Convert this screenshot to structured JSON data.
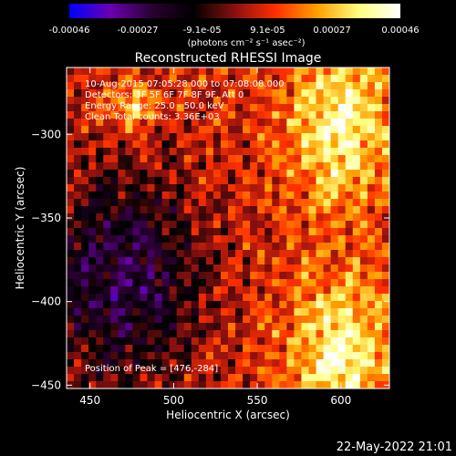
{
  "colorbar": {
    "tick_labels": [
      "-0.00046",
      "-0.00027",
      "-9.1e-05",
      "9.1e-05",
      "0.00027",
      "0.00046"
    ],
    "tick_values": [
      -0.00046,
      -0.00027,
      -9.1e-05,
      9.1e-05,
      0.00027,
      0.00046
    ],
    "range": [
      -0.00046,
      0.00046
    ],
    "units_label": "(photons cm⁻² s⁻¹ asec⁻²)"
  },
  "chart_data": {
    "type": "heatmap",
    "title": "Reconstructed RHESSI Image",
    "xlabel": "Heliocentric X (arcsec)",
    "ylabel": "Heliocentric Y (arcsec)",
    "xlim": [
      436,
      629
    ],
    "ylim": [
      -452,
      -260
    ],
    "x_ticks": [
      450,
      500,
      550,
      600
    ],
    "x_tick_labels": [
      "450",
      "500",
      "550",
      "600"
    ],
    "y_ticks": [
      -450,
      -400,
      -350,
      -300
    ],
    "y_tick_labels": [
      "−450",
      "−400",
      "−350",
      "−300"
    ],
    "annotations": [
      "10-Aug-2015 07:05:28.000 to 07:08:08.000",
      "Detectors: 3F 5F 6F 7F 8F 9F, Att 0",
      "Energy Range: 25.0 - 50.0 keV",
      "Clean      Total counts: 3.36E+03"
    ],
    "peak_label": "Position of Peak = [476,-284]",
    "peak": [
      476,
      -284
    ],
    "colormap": [
      "#0000ff",
      "#6a00b0",
      "#2a0030",
      "#000000",
      "#8a1010",
      "#ff3000",
      "#ffa000",
      "#ffff80",
      "#ffffff"
    ]
  },
  "footer": {
    "date": "22-May-2022 21:01"
  }
}
